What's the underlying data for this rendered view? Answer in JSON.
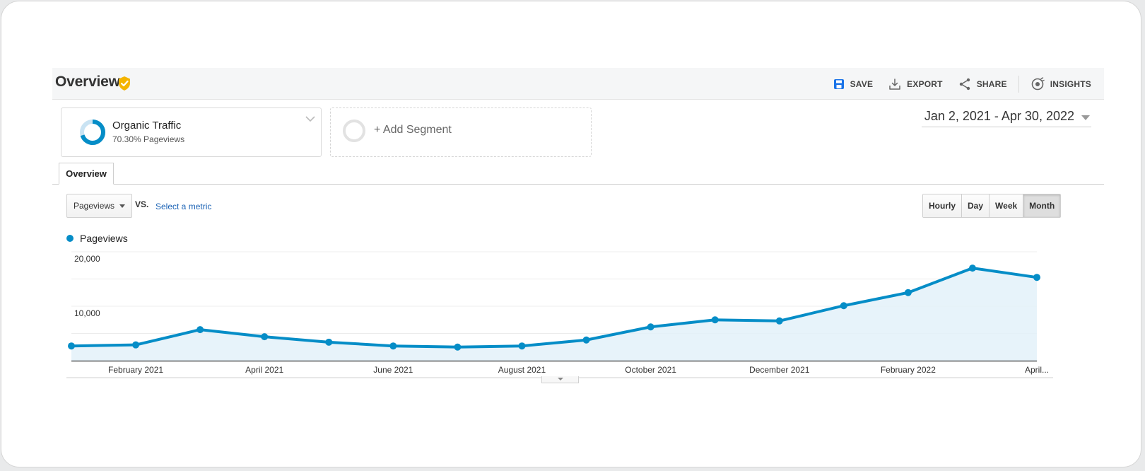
{
  "header": {
    "title": "Overview",
    "actions": {
      "save": "SAVE",
      "export": "EXPORT",
      "share": "SHARE",
      "insights": "INSIGHTS"
    }
  },
  "segments": {
    "active": {
      "name": "Organic Traffic",
      "subtitle": "70.30% Pageviews",
      "share_fraction": 0.703
    },
    "add_label": "+ Add Segment"
  },
  "date_range": "Jan 2, 2021 - Apr 30, 2022",
  "tabs": [
    {
      "label": "Overview",
      "active": true
    }
  ],
  "controls": {
    "metric": "Pageviews",
    "vs": "VS.",
    "select_metric": "Select a metric",
    "granularity": [
      "Hourly",
      "Day",
      "Week",
      "Month"
    ],
    "active_granularity": "Month"
  },
  "colors": {
    "series": "#058dc7",
    "area_fill": "#e3f1f9",
    "brand_check": "#f4b400",
    "save_icon": "#1a73e8"
  },
  "chart_data": {
    "type": "area",
    "x": [
      "2021-01",
      "2021-02",
      "2021-03",
      "2021-04",
      "2021-05",
      "2021-06",
      "2021-07",
      "2021-08",
      "2021-09",
      "2021-10",
      "2021-11",
      "2021-12",
      "2022-01",
      "2022-02",
      "2022-03",
      "2022-04"
    ],
    "series": [
      {
        "name": "Pageviews",
        "values": [
          2700,
          2900,
          5700,
          4400,
          3400,
          2700,
          2500,
          2700,
          3800,
          6200,
          7500,
          7300,
          10100,
          12500,
          17000,
          15300
        ]
      }
    ],
    "ylim": [
      0,
      20000
    ],
    "yticks": [
      "20,000",
      "10,000"
    ],
    "xtick_labels": [
      "February 2021",
      "April 2021",
      "June 2021",
      "August 2021",
      "October 2021",
      "December 2021",
      "February 2022",
      "April..."
    ],
    "grid": true,
    "legend": "top-left"
  }
}
